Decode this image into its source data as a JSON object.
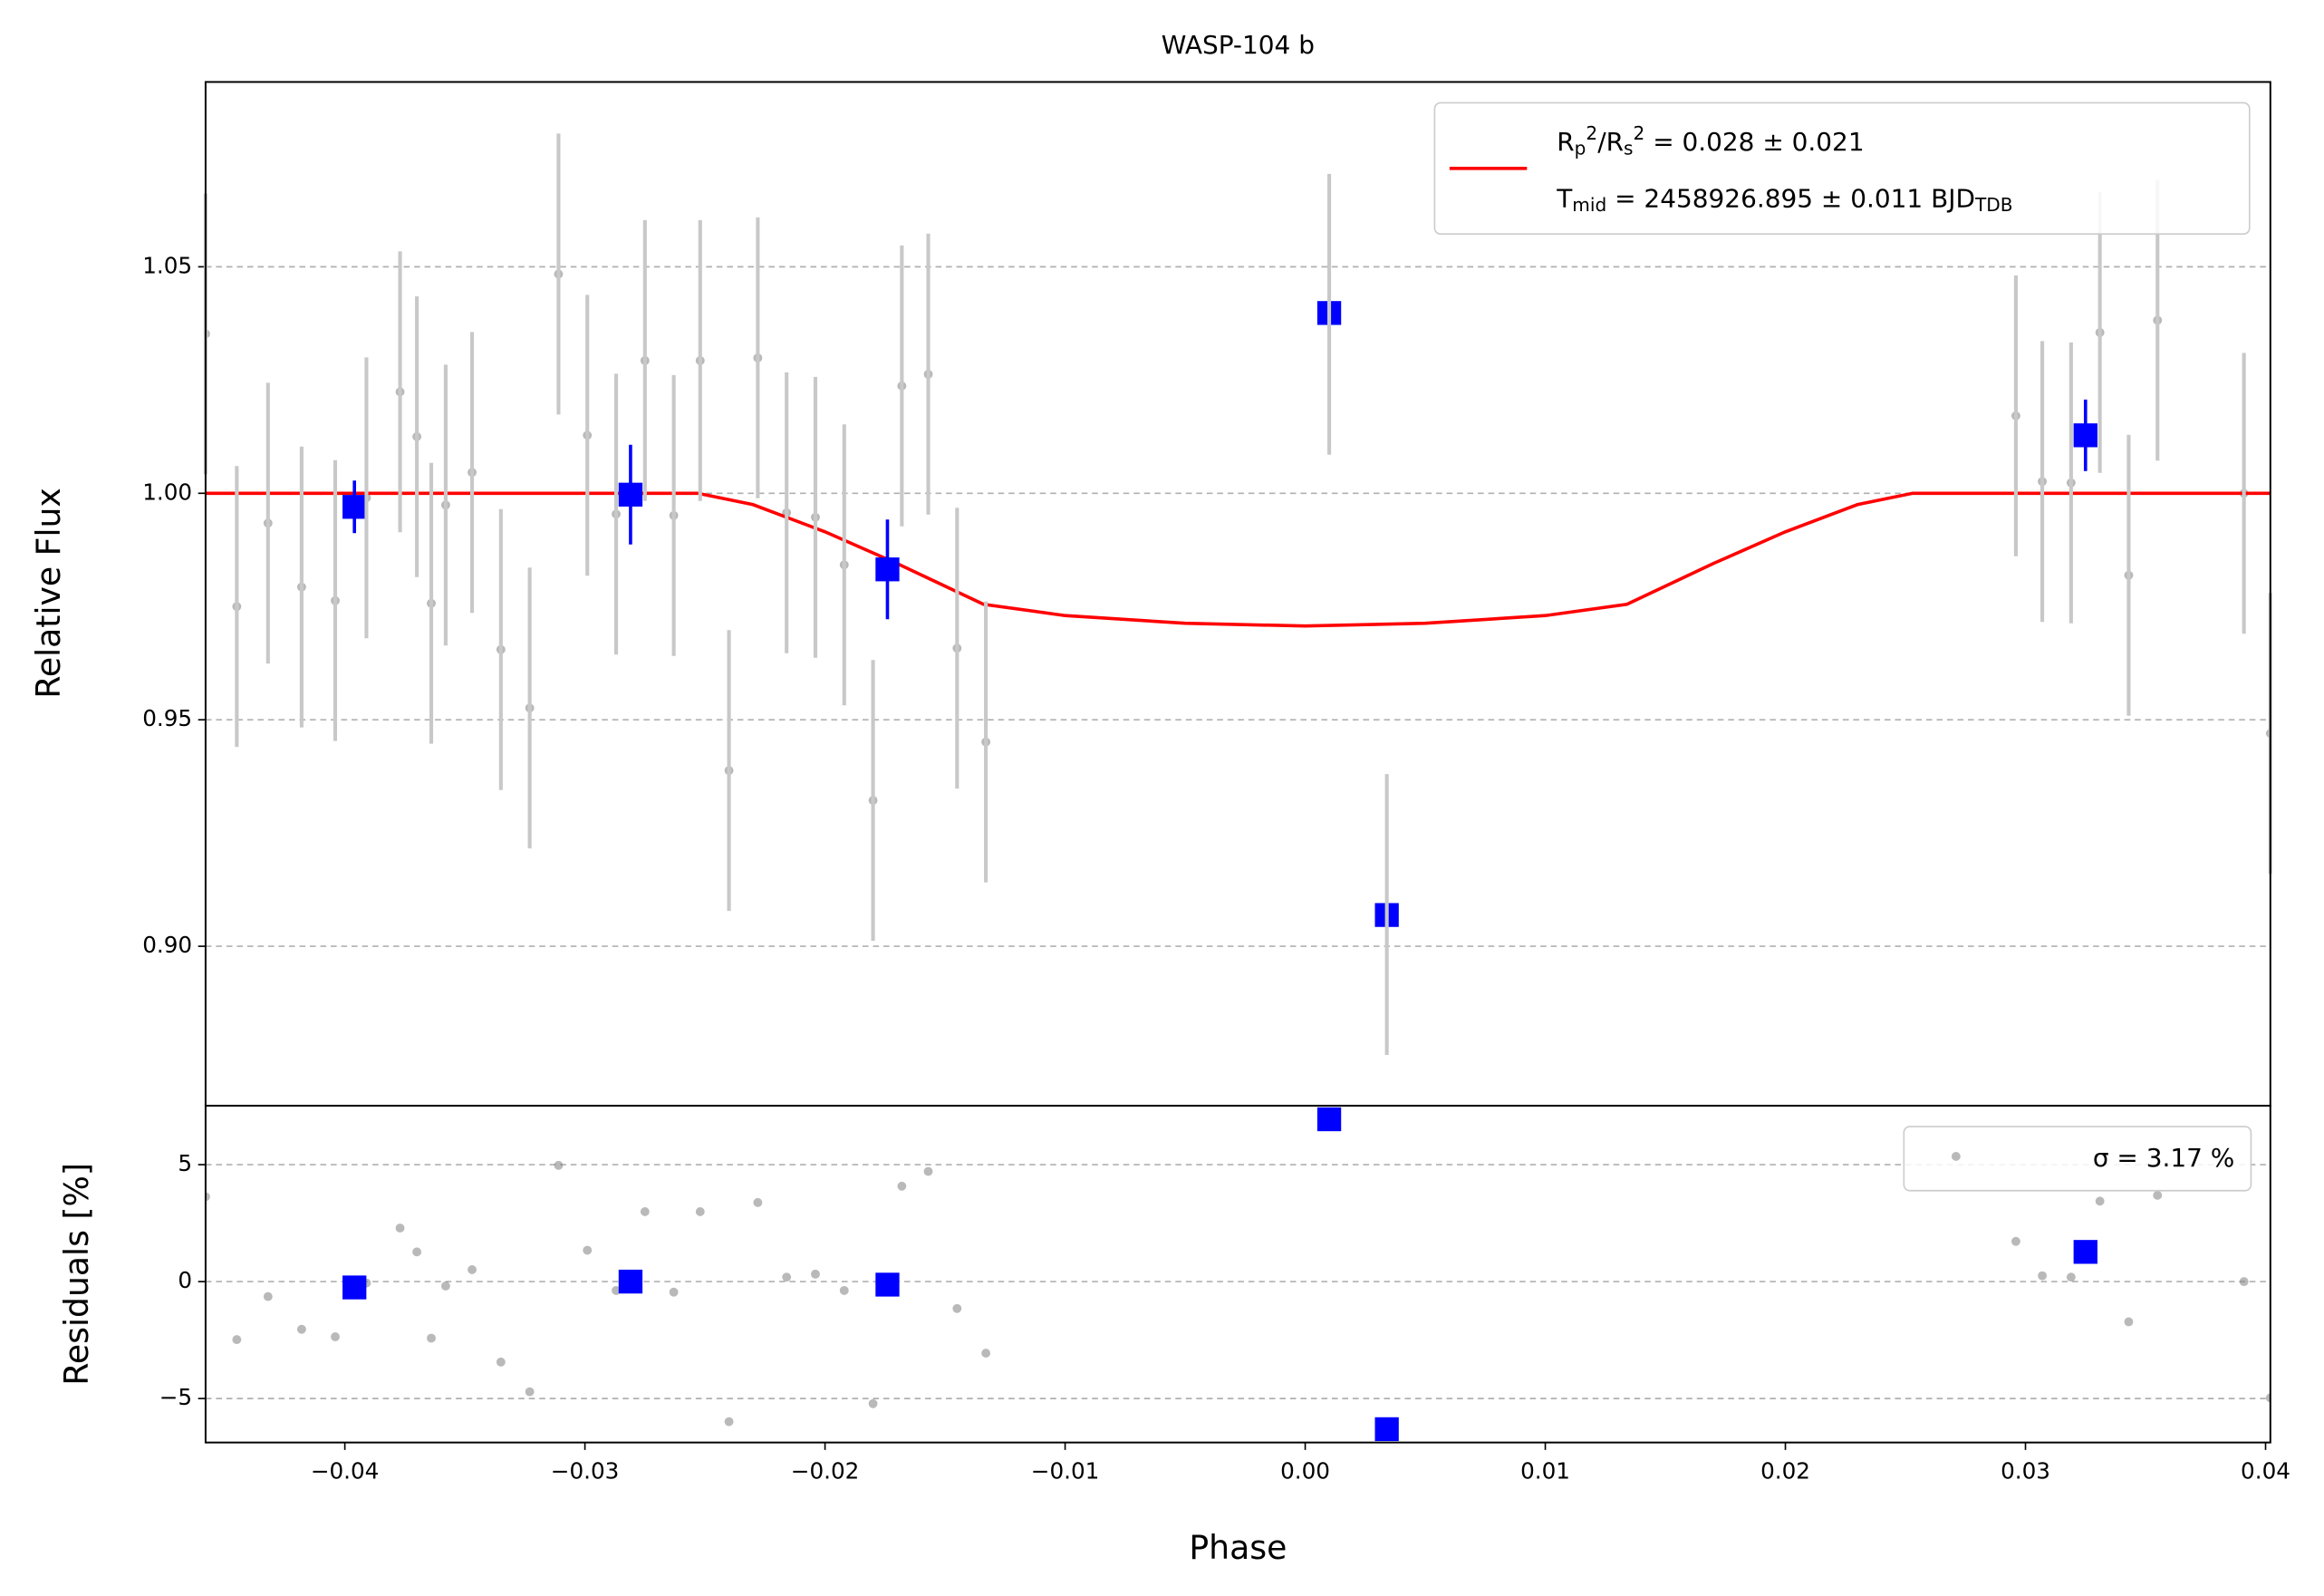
{
  "chart_data": [
    {
      "type": "scatter",
      "title": "WASP-104 b",
      "ylabel": "Relative Flux",
      "xlim": [
        -0.0458,
        0.0402
      ],
      "ylim": [
        0.8648,
        1.0908
      ],
      "yticks": [
        {
          "value": 0.9,
          "label": "0.90"
        },
        0.95,
        {
          "value": 1.0,
          "label": "1.00"
        },
        1.05
      ],
      "grid": true,
      "legend": "upper right",
      "series": [
        {
          "color": "#808080",
          "error_color": "#c8c8c8",
          "marker": "circle",
          "x": [
            -0.0458,
            -0.0445,
            -0.0432,
            -0.0418,
            -0.0404,
            -0.0391,
            -0.0377,
            -0.037,
            -0.0364,
            -0.0358,
            -0.0347,
            -0.0335,
            -0.0323,
            -0.0311,
            -0.0299,
            -0.0287,
            -0.0275,
            -0.0263,
            -0.0252,
            -0.024,
            -0.0228,
            -0.0216,
            -0.0204,
            -0.0192,
            -0.018,
            -0.0168,
            -0.0157,
            -0.0145,
            -0.0133,
            0.001,
            0.0034,
            0.0296,
            0.0307,
            0.0319,
            0.0331,
            0.0343,
            0.0355,
            0.0391,
            0.0402
          ],
          "values": [
            1.0352,
            0.975,
            0.9934,
            0.9793,
            0.9763,
            0.999,
            1.0224,
            1.0125,
            0.9757,
            0.9974,
            1.0046,
            0.9655,
            0.9526,
            1.0484,
            1.0128,
            0.9954,
            1.0293,
            0.9951,
            1.0293,
            0.9388,
            1.0299,
            0.9957,
            0.9947,
            0.9842,
            0.9322,
            1.0237,
            1.0263,
            0.9658,
            0.9451,
            1.0395,
            0.907,
            1.0171,
            1.0026,
            1.0023,
            1.0355,
            0.9819,
            1.0382,
            1.0,
            0.947
          ],
          "errors": [
            0.031,
            0.031,
            0.031,
            0.031,
            0.031,
            0.031,
            0.031,
            0.031,
            0.031,
            0.031,
            0.031,
            0.031,
            0.031,
            0.031,
            0.031,
            0.031,
            0.031,
            0.031,
            0.031,
            0.031,
            0.031,
            0.031,
            0.031,
            0.031,
            0.031,
            0.031,
            0.031,
            0.031,
            0.031,
            0.031,
            0.031,
            0.031,
            0.031,
            0.031,
            0.031,
            0.031,
            0.031,
            0.031,
            0.031
          ]
        },
        {
          "type": "line",
          "color": "#ff0000",
          "name": [
            "R_p^2/R_s^2 = 0.028 ± 0.021",
            "T_{mid} = 2458926.895 ± 0.011 BJD_{TDB}"
          ],
          "x": [
            -0.0458,
            -0.0253,
            -0.023,
            -0.02,
            -0.017,
            -0.0134,
            -0.01,
            -0.005,
            0,
            0.005,
            0.01,
            0.0134,
            0.017,
            0.02,
            0.023,
            0.0253,
            0.0402
          ],
          "values": [
            1,
            1,
            0.9975,
            0.9915,
            0.9845,
            0.9755,
            0.973,
            0.9713,
            0.9707,
            0.9713,
            0.973,
            0.9755,
            0.9845,
            0.9915,
            0.9975,
            1,
            1
          ]
        },
        {
          "color": "#0000ff",
          "error_color": "#0000ff",
          "marker": "square",
          "x": [
            -0.0396,
            -0.0281,
            -0.0174,
            0.001,
            0.0034,
            0.0325
          ],
          "values": [
            0.997,
            0.9997,
            0.9832,
            1.0398,
            0.9069,
            1.0128
          ],
          "errors": [
            0.0058,
            0.011,
            0.011,
            null,
            null,
            0.0079
          ]
        }
      ]
    },
    {
      "type": "scatter",
      "xlabel": "Phase",
      "ylabel": "Residuals [%]",
      "xlim": [
        -0.0458,
        0.0402
      ],
      "ylim": [
        -6.88,
        7.52
      ],
      "xticks": [
        {
          "value": -0.04,
          "label": "−0.04"
        },
        {
          "value": -0.03,
          "label": "−0.03"
        },
        {
          "value": -0.02,
          "label": "−0.02"
        },
        {
          "value": -0.01,
          "label": "−0.01"
        },
        {
          "value": 0,
          "label": "0.00"
        },
        0.01,
        0.02,
        0.03,
        0.04
      ],
      "yticks": [
        {
          "value": -5,
          "label": "−5"
        },
        0,
        5
      ],
      "grid": true,
      "legend": "upper right",
      "series": [
        {
          "name": "σ = 3.17 %",
          "color": "#808080",
          "marker": "circle",
          "x": [
            -0.0458,
            -0.0445,
            -0.0432,
            -0.0418,
            -0.0404,
            -0.0391,
            -0.0377,
            -0.037,
            -0.0364,
            -0.0358,
            -0.0347,
            -0.0335,
            -0.0323,
            -0.0311,
            -0.0299,
            -0.0287,
            -0.0275,
            -0.0263,
            -0.0252,
            -0.024,
            -0.0228,
            -0.0216,
            -0.0204,
            -0.0192,
            -0.018,
            -0.0168,
            -0.0157,
            -0.0145,
            -0.0133,
            0.001,
            0.0034,
            0.0296,
            0.0307,
            0.0319,
            0.0331,
            0.0343,
            0.0355,
            0.0391,
            0.0402
          ],
          "values": [
            3.63,
            -2.48,
            -0.64,
            -2.04,
            -2.36,
            -0.06,
            2.29,
            1.27,
            -2.42,
            -0.19,
            0.51,
            -3.44,
            -4.71,
            4.97,
            1.34,
            -0.38,
            2.99,
            -0.45,
            2.99,
            -5.99,
            3.38,
            0.19,
            0.32,
            -0.38,
            -5.22,
            4.08,
            4.71,
            -1.15,
            -3.06,
            6.9,
            -6.4,
            1.72,
            0.25,
            0.19,
            3.44,
            -1.72,
            3.69,
            0,
            -4.97
          ]
        },
        {
          "color": "#0000ff",
          "marker": "square",
          "x": [
            -0.0396,
            -0.0281,
            -0.0174,
            0.001,
            0.0034,
            0.0325
          ],
          "values": [
            -0.25,
            0,
            -0.13,
            6.94,
            -6.31,
            1.27
          ]
        }
      ]
    }
  ]
}
